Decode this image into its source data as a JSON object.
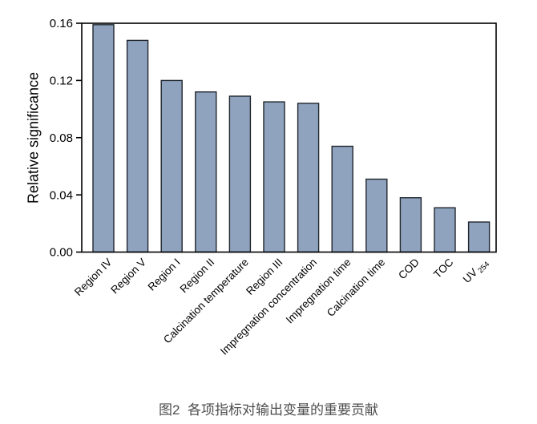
{
  "figure": {
    "caption": "图2  各项指标对输出变量的重要贡献"
  },
  "chart_data": {
    "type": "bar",
    "title": "",
    "xlabel": "",
    "ylabel": "Relative significance",
    "ylim": [
      0,
      0.16
    ],
    "y_ticks": [
      0,
      0.04,
      0.08,
      0.12,
      0.16
    ],
    "y_tick_labels": [
      "0.00",
      "0.04",
      "0.08",
      "0.12",
      "0.16"
    ],
    "categories": [
      "Region IV",
      "Region V",
      "Region I",
      "Region II",
      "Calcination temperature",
      "Region III",
      "Impregnation concentration",
      "Impregnation time",
      "Calcination time",
      "COD",
      "TOC",
      {
        "text": "UV",
        "sub": "254"
      }
    ],
    "values": [
      0.159,
      0.148,
      0.12,
      0.112,
      0.109,
      0.105,
      0.104,
      0.074,
      0.051,
      0.038,
      0.031,
      0.021
    ],
    "grid": false,
    "legend_position": "none",
    "bar_fill_color": "#8FA3BE",
    "bar_edge_color": "#20262E",
    "axis_color": "#000000",
    "tick_label_color": "#000000",
    "caption_color": "#4D4D4D"
  }
}
